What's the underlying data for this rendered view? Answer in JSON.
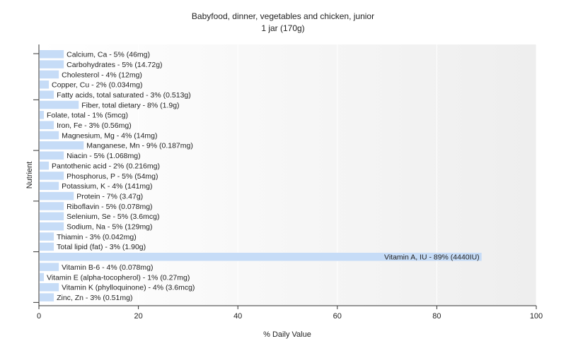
{
  "chart_data": {
    "type": "bar",
    "orientation": "horizontal",
    "title": "Babyfood, dinner, vegetables and chicken, junior",
    "subtitle": "1 jar (170g)",
    "xlabel": "% Daily Value",
    "ylabel": "Nutrient",
    "xlim": [
      0,
      100
    ],
    "xticks": [
      0,
      20,
      40,
      60,
      80,
      100
    ],
    "grid": true,
    "bar_color": "#c6dcf7",
    "categories": [
      "Calcium, Ca - 5% (46mg)",
      "Carbohydrates - 5% (14.72g)",
      "Cholesterol - 4% (12mg)",
      "Copper, Cu - 2% (0.034mg)",
      "Fatty acids, total saturated - 3% (0.513g)",
      "Fiber, total dietary - 8% (1.9g)",
      "Folate, total - 1% (5mcg)",
      "Iron, Fe - 3% (0.56mg)",
      "Magnesium, Mg - 4% (14mg)",
      "Manganese, Mn - 9% (0.187mg)",
      "Niacin - 5% (1.068mg)",
      "Pantothenic acid - 2% (0.216mg)",
      "Phosphorus, P - 5% (54mg)",
      "Potassium, K - 4% (141mg)",
      "Protein - 7% (3.47g)",
      "Riboflavin - 5% (0.078mg)",
      "Selenium, Se - 5% (3.6mcg)",
      "Sodium, Na - 5% (129mg)",
      "Thiamin - 3% (0.042mg)",
      "Total lipid (fat) - 3% (1.90g)",
      "Vitamin A, IU - 89% (4440IU)",
      "Vitamin B-6 - 4% (0.078mg)",
      "Vitamin E (alpha-tocopherol) - 1% (0.27mg)",
      "Vitamin K (phylloquinone) - 4% (3.6mcg)",
      "Zinc, Zn - 3% (0.51mg)"
    ],
    "values": [
      5,
      5,
      4,
      2,
      3,
      8,
      1,
      3,
      4,
      9,
      5,
      2,
      5,
      4,
      7,
      5,
      5,
      5,
      3,
      3,
      89,
      4,
      1,
      4,
      3
    ]
  }
}
